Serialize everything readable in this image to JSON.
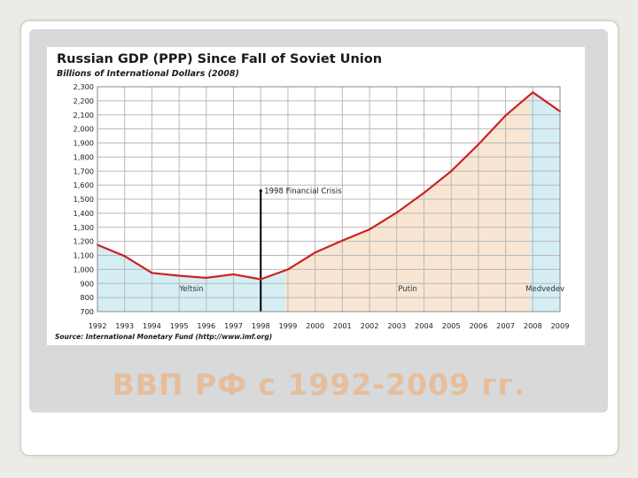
{
  "slide": {
    "caption": "ВВП РФ с 1992-2009 гг."
  },
  "chart_data": {
    "type": "area",
    "title": "Russian GDP (PPP) Since Fall of Soviet Union",
    "subtitle": "Billions of International Dollars (2008)",
    "source": "Source: International Monetary Fund (http://www.imf.org)",
    "x": [
      1992,
      1993,
      1994,
      1995,
      1996,
      1997,
      1998,
      1999,
      2000,
      2001,
      2002,
      2003,
      2004,
      2005,
      2006,
      2007,
      2008,
      2009
    ],
    "series": [
      {
        "values": [
          1175,
          1095,
          975,
          955,
          940,
          965,
          930,
          1000,
          1120,
          1205,
          1285,
          1405,
          1545,
          1700,
          1890,
          2095,
          2260,
          2125
        ],
        "color": "#cc2222"
      }
    ],
    "ylim": [
      700,
      2300
    ],
    "ytick_labels": [
      "700",
      "800",
      "900",
      "1,000",
      "1,100",
      "1,200",
      "1,300",
      "1,400",
      "1,500",
      "1,600",
      "1,700",
      "1,800",
      "1,900",
      "2,000",
      "2,100",
      "2,200",
      "2,300"
    ],
    "xtick_labels": [
      "1992",
      "1993",
      "1994",
      "1995",
      "1996",
      "1997",
      "1998",
      "1999",
      "2000",
      "2001",
      "2002",
      "2003",
      "2004",
      "2005",
      "2006",
      "2007",
      "2008",
      "2009"
    ],
    "grid": true,
    "eras": [
      {
        "label": "Yeltsin",
        "start": 1992,
        "end": 1998.9,
        "color": "#d4eef3"
      },
      {
        "label": "Putin",
        "start": 1998.9,
        "end": 2007.9,
        "color": "#f8e6d3"
      },
      {
        "label": "Medvedev",
        "start": 2007.9,
        "end": 2009,
        "color": "#d4eef3"
      }
    ],
    "annotation": {
      "label": "1998 Financial Crisis",
      "x": 1998
    }
  }
}
